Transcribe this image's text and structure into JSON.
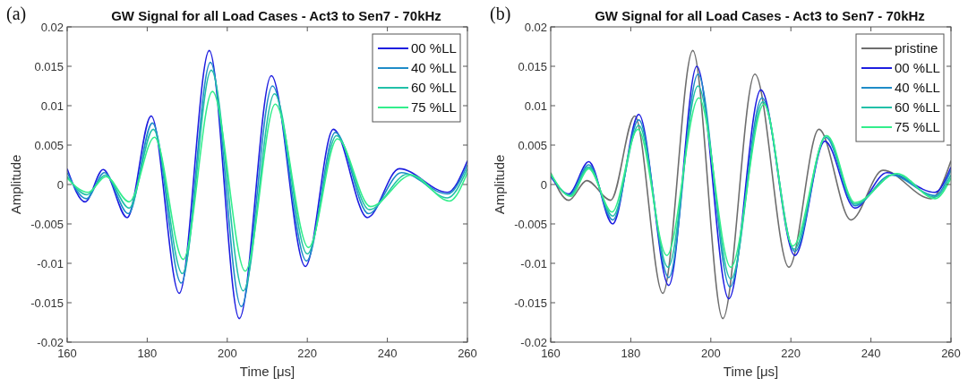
{
  "chart_data": [
    {
      "type": "line",
      "title": "GW Signal for all Load Cases - Act3 to Sen7 - 70kHz",
      "xlabel": "Time [μs]",
      "ylabel": "Amplitude",
      "annotations": [
        "(a)"
      ],
      "xlim": [
        160,
        260
      ],
      "ylim": [
        -0.02,
        0.02
      ],
      "xticks": [
        160,
        180,
        200,
        220,
        240,
        260
      ],
      "yticks": [
        -0.02,
        -0.015,
        -0.01,
        -0.005,
        0,
        0.005,
        0.01,
        0.015,
        0.02
      ],
      "legend": "top right",
      "grid": false,
      "series": [
        {
          "name": "00 %LL",
          "color": "#1e1ee0",
          "x": [
            160,
            164.5,
            169,
            175,
            181,
            188,
            195.5,
            203,
            211,
            219.5,
            226.5,
            235,
            243,
            255,
            260
          ],
          "values": [
            0.002,
            -0.0022,
            0.0019,
            -0.0042,
            0.0087,
            -0.0138,
            0.017,
            -0.017,
            0.0138,
            -0.0104,
            0.007,
            -0.0042,
            0.002,
            -0.001,
            0.003
          ]
        },
        {
          "name": "40 %LL",
          "color": "#1f8cc8",
          "x": [
            160,
            164.8,
            169.3,
            175.3,
            181.3,
            188.5,
            195.8,
            203.5,
            211.3,
            219.8,
            227,
            235.3,
            243.5,
            255,
            260
          ],
          "values": [
            0.0015,
            -0.0018,
            0.0015,
            -0.0037,
            0.0078,
            -0.0125,
            0.0155,
            -0.0155,
            0.0125,
            -0.0097,
            0.0066,
            -0.0037,
            0.0015,
            -0.0012,
            0.0025
          ]
        },
        {
          "name": "60 %LL",
          "color": "#22c0a8",
          "x": [
            160,
            165,
            169.5,
            175.5,
            181.5,
            188.8,
            196,
            204,
            211.8,
            220,
            227.3,
            235.5,
            245,
            255,
            260
          ],
          "values": [
            0.001,
            -0.0013,
            0.0012,
            -0.003,
            0.007,
            -0.0113,
            0.0145,
            -0.0135,
            0.0115,
            -0.0088,
            0.0062,
            -0.0032,
            0.0013,
            -0.0017,
            0.002
          ]
        },
        {
          "name": "75 %LL",
          "color": "#33ee8c",
          "x": [
            160,
            165.2,
            169.7,
            175.5,
            181.8,
            189,
            196.3,
            204.5,
            212,
            220.3,
            227.5,
            235.8,
            246,
            255.5,
            260
          ],
          "values": [
            0.0008,
            -0.001,
            0.001,
            -0.0022,
            0.006,
            -0.0095,
            0.0118,
            -0.011,
            0.0102,
            -0.008,
            0.0058,
            -0.0028,
            0.0012,
            -0.0021,
            0.0015
          ]
        }
      ]
    },
    {
      "type": "line",
      "title": "GW Signal for all Load Cases - Act3 to Sen7 - 70kHz",
      "xlabel": "Time [μs]",
      "ylabel": "Amplitude",
      "annotations": [
        "(b)"
      ],
      "xlim": [
        160,
        260
      ],
      "ylim": [
        -0.02,
        0.02
      ],
      "xticks": [
        160,
        180,
        200,
        220,
        240,
        260
      ],
      "yticks": [
        -0.02,
        -0.015,
        -0.01,
        -0.005,
        0,
        0.005,
        0.01,
        0.015,
        0.02
      ],
      "legend": "top right",
      "grid": false,
      "series": [
        {
          "name": "pristine",
          "color": "#6e6e6e",
          "x": [
            160,
            164.5,
            169,
            175,
            181,
            188,
            195.5,
            203,
            211,
            219.5,
            227,
            235,
            243,
            255,
            260
          ],
          "values": [
            0.0015,
            -0.002,
            0.0005,
            -0.002,
            0.0087,
            -0.0138,
            0.017,
            -0.017,
            0.014,
            -0.0105,
            0.007,
            -0.0045,
            0.0018,
            -0.0018,
            0.003
          ]
        },
        {
          "name": "00 %LL",
          "color": "#1e1ee0",
          "x": [
            160,
            164.5,
            169.5,
            175.5,
            182,
            189.5,
            196.5,
            204.5,
            212.5,
            221,
            228.5,
            236,
            244,
            256,
            260
          ],
          "values": [
            0.001,
            -0.0012,
            0.0029,
            -0.005,
            0.0089,
            -0.0128,
            0.015,
            -0.0145,
            0.012,
            -0.009,
            0.0055,
            -0.003,
            0.0015,
            -0.001,
            0.0022
          ]
        },
        {
          "name": "40 %LL",
          "color": "#1f8cc8",
          "x": [
            160,
            164.7,
            169.5,
            175.5,
            182,
            189.5,
            196.8,
            204.8,
            212.8,
            221,
            228.7,
            236,
            245,
            256,
            260
          ],
          "values": [
            0.0012,
            -0.0013,
            0.0025,
            -0.0045,
            0.0082,
            -0.0118,
            0.014,
            -0.013,
            0.011,
            -0.0085,
            0.006,
            -0.0027,
            0.0012,
            -0.0014,
            0.0018
          ]
        },
        {
          "name": "60 %LL",
          "color": "#22c0a8",
          "x": [
            160,
            164.8,
            169.5,
            175.5,
            182,
            189.3,
            196.8,
            205,
            213,
            220.8,
            228.8,
            236,
            246,
            256,
            260
          ],
          "values": [
            0.0013,
            -0.0014,
            0.0022,
            -0.004,
            0.0075,
            -0.0105,
            0.0125,
            -0.012,
            0.0105,
            -0.0082,
            0.0062,
            -0.0025,
            0.0013,
            -0.0016,
            0.0012
          ]
        },
        {
          "name": "75 %LL",
          "color": "#33ee8c",
          "x": [
            160,
            165,
            169.5,
            175.3,
            181.8,
            189,
            197,
            205,
            213.3,
            220.5,
            229,
            236,
            246.5,
            256,
            260
          ],
          "values": [
            0.0014,
            -0.0015,
            0.002,
            -0.0035,
            0.007,
            -0.009,
            0.011,
            -0.0105,
            0.0102,
            -0.0078,
            0.0062,
            -0.0023,
            0.0014,
            -0.0018,
            0.0008
          ]
        }
      ]
    }
  ]
}
